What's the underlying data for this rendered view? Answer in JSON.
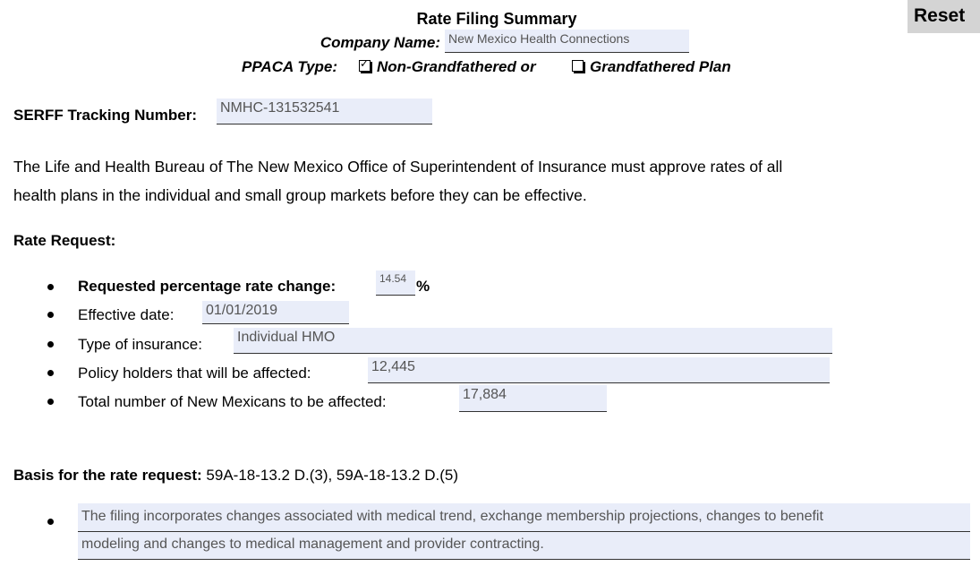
{
  "header": {
    "title": "Rate Filing Summary",
    "company_label": "Company Name:",
    "company_value": "New Mexico Health Connections",
    "ppaca_label": "PPACA Type:",
    "option_1": "Non-Grandfathered or",
    "option_2": "Grandfathered Plan"
  },
  "reset_button": "Reset",
  "serff": {
    "label": "SERFF Tracking Number:",
    "value": "NMHC-131532541"
  },
  "intro": {
    "lines": [
      "The Life and Health Bureau of The New Mexico Office of Superintendent of Insurance must approve rates of all",
      "health plans in the individual and small group markets before they can be effective."
    ]
  },
  "rate_request": {
    "heading": "Rate Request:",
    "items": [
      {
        "label": "Requested  percentage rate change:",
        "value": "14.54",
        "suffix": "%"
      },
      {
        "label": "Effective date:",
        "value": "01/01/2019"
      },
      {
        "label": "Type of insurance:",
        "value": "Individual HMO"
      },
      {
        "label": "Policy holders that will be affected:",
        "value": "12,445"
      },
      {
        "label": "Total number of New Mexicans to be affected:",
        "value": "17,884"
      }
    ]
  },
  "basis": {
    "label": "Basis for the rate request:",
    "value": "59A-18-13.2 D.(3),  59A-18-13.2 D.(5)",
    "description_lines": [
      "The filing incorporates changes associated with medical trend, exchange membership projections, changes to benefit",
      "modeling and changes to medical management and provider contracting."
    ]
  }
}
